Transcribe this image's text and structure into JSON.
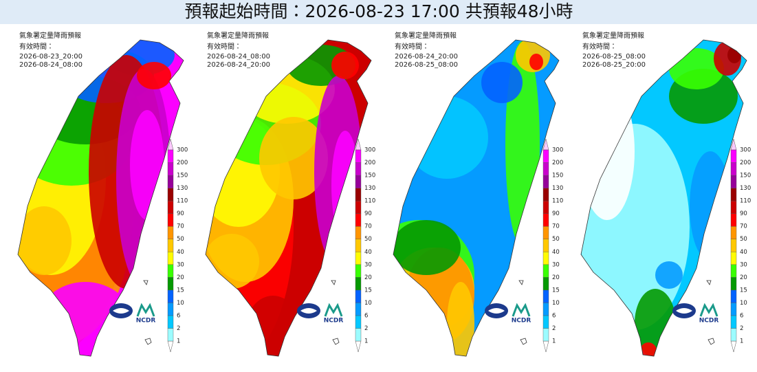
{
  "header": {
    "title": "預報起始時間：2026-08-23 17:00  共預報48小時"
  },
  "panels": [
    {
      "title": "氣象署定量降雨預報",
      "valid_label": "有效時間：",
      "start": "2026-08-23_20:00",
      "end": "2026-08-24_08:00"
    },
    {
      "title": "氣象署定量降雨預報",
      "valid_label": "有效時間：",
      "start": "2026-08-24_08:00",
      "end": "2026-08-24_20:00"
    },
    {
      "title": "氣象署定量降雨預報",
      "valid_label": "有效時間：",
      "start": "2026-08-24_20:00",
      "end": "2026-08-25_08:00"
    },
    {
      "title": "氣象署定量降雨預報",
      "valid_label": "有效時間：",
      "start": "2026-08-25_08:00",
      "end": "2026-08-25_20:00"
    }
  ],
  "legend": {
    "ticks": [
      1,
      2,
      6,
      10,
      15,
      20,
      30,
      40,
      50,
      70,
      90,
      110,
      130,
      150,
      200,
      300
    ],
    "colors": [
      "#ffffff",
      "#9cfcff",
      "#03c8ff",
      "#059bff",
      "#0363ff",
      "#059902",
      "#39ff03",
      "#fffb03",
      "#ffc800",
      "#ff9500",
      "#ff0000",
      "#cc0000",
      "#990000",
      "#960099",
      "#c900cc",
      "#fb00ff",
      "#fdc9ff"
    ]
  },
  "logo_text": "NCDR"
}
